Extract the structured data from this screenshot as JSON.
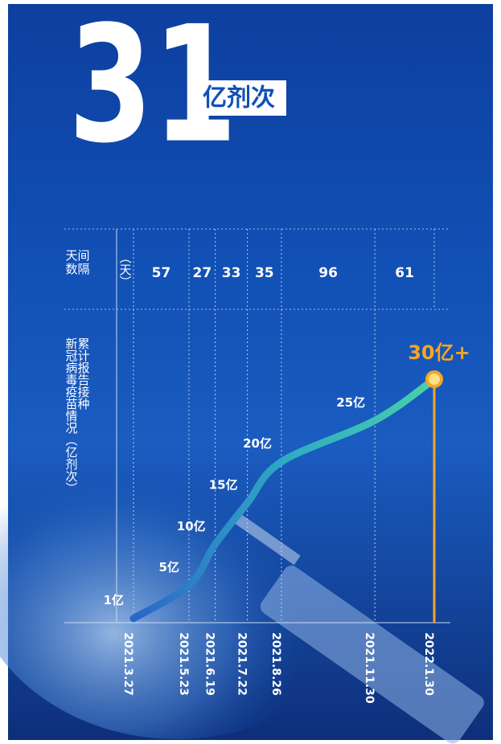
{
  "headline": {
    "number": "31",
    "unit": "亿剂次"
  },
  "chart_data": {
    "type": "line",
    "interval_label": [
      "间隔",
      "天数"
    ],
    "interval_unit": "（天）",
    "intervals": [
      57,
      27,
      33,
      35,
      96,
      61
    ],
    "y_label": [
      "累计报告接种",
      "新冠病毒疫苗情况（亿剂次）"
    ],
    "categories": [
      "2021.3.27",
      "2021.5.23",
      "2021.6.19",
      "2021.7.22",
      "2021.8.26",
      "2021.11.30",
      "2022.1.30"
    ],
    "values": [
      1,
      5,
      10,
      15,
      20,
      25,
      30
    ],
    "value_labels": [
      "1亿",
      "5亿",
      "10亿",
      "15亿",
      "20亿",
      "25亿",
      "30亿+"
    ],
    "color": "#3fc6b0",
    "highlight_color": "#f5a623",
    "ylim": [
      0,
      30
    ]
  }
}
